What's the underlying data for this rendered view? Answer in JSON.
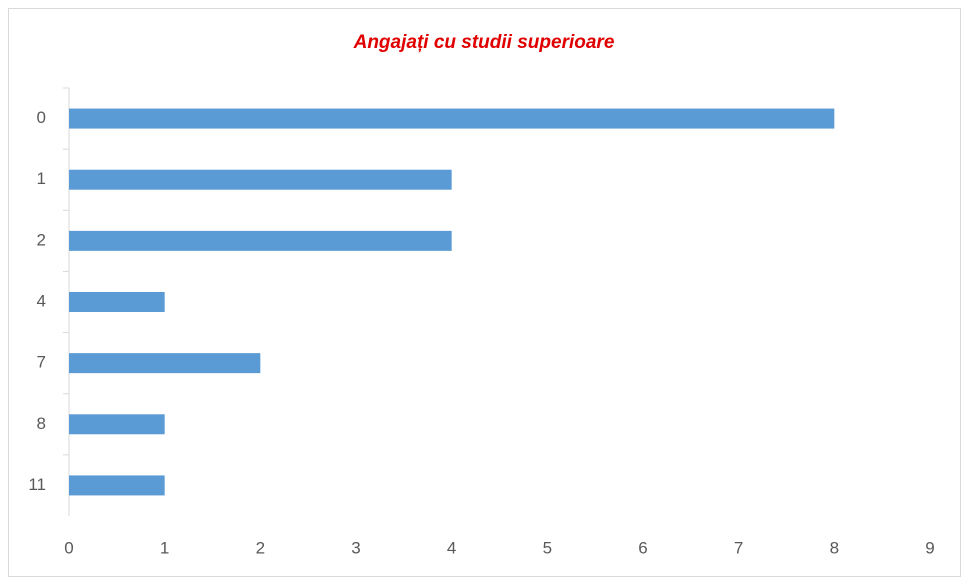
{
  "chart_data": {
    "type": "bar",
    "orientation": "horizontal",
    "title": "Angajați cu studii superioare",
    "categories": [
      "0",
      "1",
      "2",
      "4",
      "7",
      "8",
      "11"
    ],
    "values": [
      8,
      4,
      4,
      1,
      2,
      1,
      1
    ],
    "color": "#5b9bd5",
    "xlim": [
      0,
      9
    ],
    "xticks": [
      0,
      1,
      2,
      3,
      4,
      5,
      6,
      7,
      8,
      9
    ],
    "grid": false
  }
}
